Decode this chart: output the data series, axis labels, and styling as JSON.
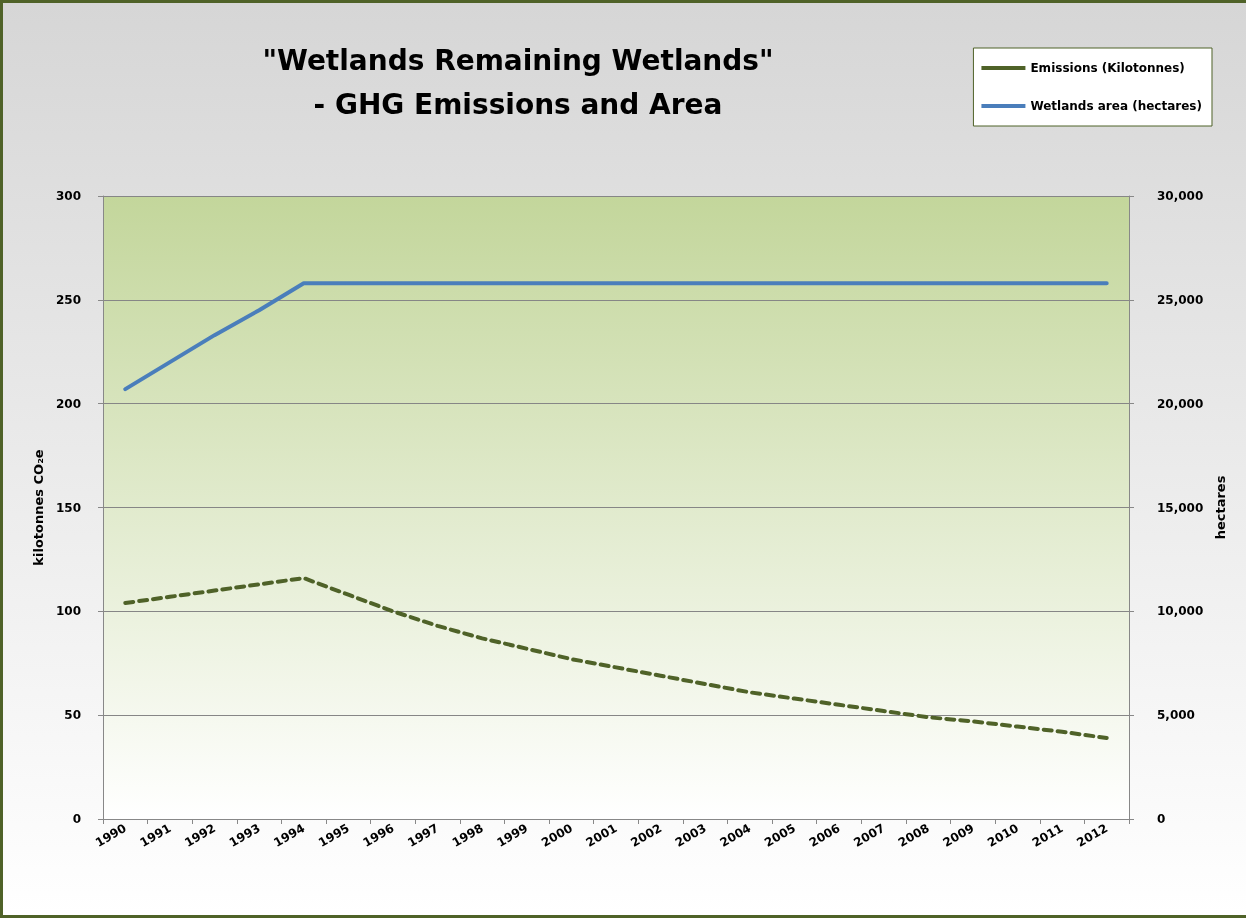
{
  "chart_data": {
    "type": "line",
    "title": "\"Wetlands Remaining Wetlands\"\n- GHG Emissions and Area",
    "ylabel": "kilotonnes CO₂e",
    "y2label": "hectares",
    "categories": [
      "1990",
      "1991",
      "1992",
      "1993",
      "1994",
      "1995",
      "1996",
      "1997",
      "1998",
      "1999",
      "2000",
      "2001",
      "2002",
      "2003",
      "2004",
      "2005",
      "2006",
      "2007",
      "2008",
      "2009",
      "2010",
      "2011",
      "2012"
    ],
    "series": [
      {
        "name": "Emissions (Kilotonnes)",
        "color": "#4f6228",
        "line_style": "dashed",
        "values": [
          104,
          107,
          110,
          113,
          116,
          108,
          100,
          93,
          87,
          82,
          77,
          73,
          69,
          65,
          61,
          58,
          55,
          52,
          49,
          47,
          44.5,
          42,
          39
        ]
      },
      {
        "name": "Wetlands area (hectares)",
        "color": "#4a7ebb",
        "line_style": "solid",
        "axis": "y2",
        "values": [
          20700,
          22000,
          23300,
          24500,
          25800,
          25800,
          25800,
          25800,
          25800,
          25800,
          25800,
          25800,
          25800,
          25800,
          25800,
          25800,
          25800,
          25800,
          25800,
          25800,
          25800,
          25800,
          25800
        ]
      }
    ],
    "ylim": [
      0,
      300
    ],
    "yticks": [
      0,
      50,
      100,
      150,
      200,
      250,
      300
    ],
    "y2lim": [
      0,
      30000
    ],
    "y2ticks": [
      0,
      {
        "value": 5000,
        "label": "5,000"
      },
      {
        "value": 10000,
        "label": "10,000"
      },
      {
        "value": 15000,
        "label": "15,000"
      },
      {
        "value": 20000,
        "label": "20,000"
      },
      {
        "value": 25000,
        "label": "25,000"
      },
      {
        "value": 30000,
        "label": "30,000"
      }
    ],
    "grid": "y",
    "legend": "top right",
    "marker": "none"
  }
}
